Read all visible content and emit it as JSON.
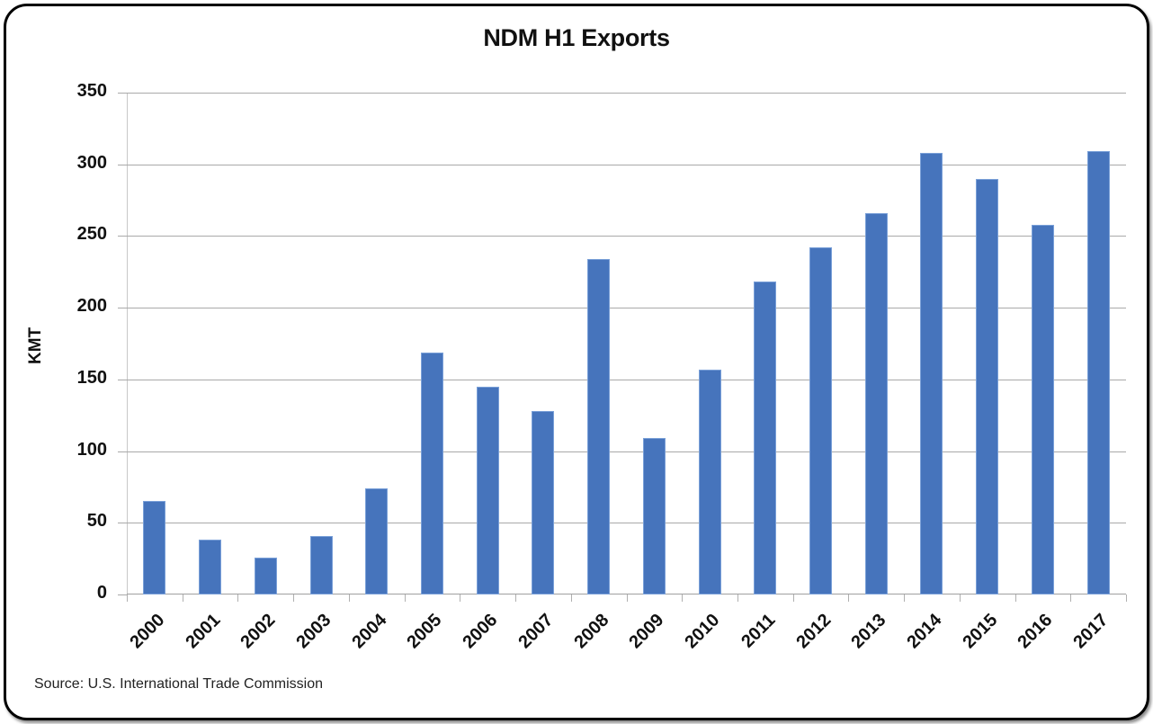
{
  "chart_data": {
    "type": "bar",
    "title": "NDM H1 Exports",
    "xlabel": "",
    "ylabel": "KMT",
    "ylim": [
      0,
      350
    ],
    "yticks": [
      0,
      50,
      100,
      150,
      200,
      250,
      300,
      350
    ],
    "grid": true,
    "legend": null,
    "bar_color": "#4674bc",
    "categories": [
      "2000",
      "2001",
      "2002",
      "2003",
      "2004",
      "2005",
      "2006",
      "2007",
      "2008",
      "2009",
      "2010",
      "2011",
      "2012",
      "2013",
      "2014",
      "2015",
      "2016",
      "2017"
    ],
    "values": [
      65,
      38,
      26,
      41,
      74,
      169,
      145,
      128,
      234,
      109,
      157,
      218,
      242,
      266,
      308,
      290,
      258,
      309
    ],
    "annotations": [
      "Source:  U.S. International Trade Commission"
    ]
  },
  "title": "NDM H1 Exports",
  "ylabel": "KMT",
  "source": "Source:  U.S. International Trade Commission"
}
